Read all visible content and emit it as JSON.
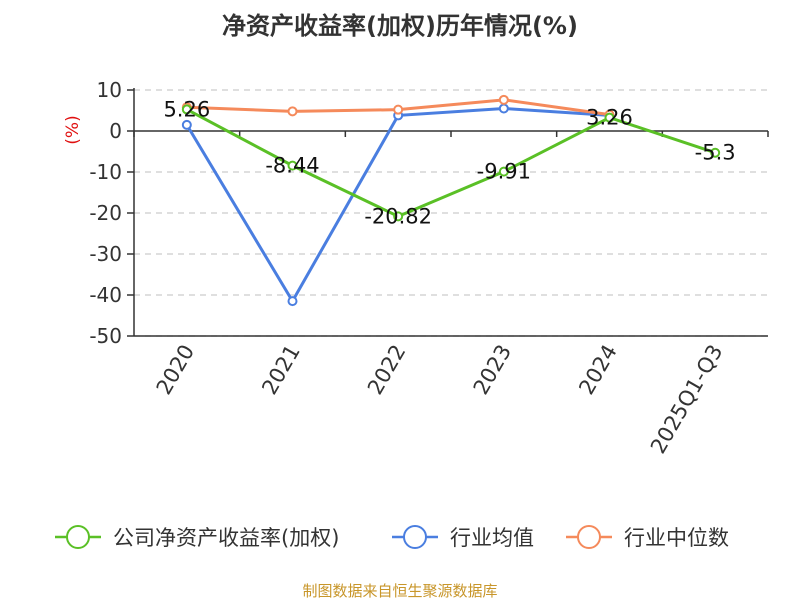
{
  "chart_data": {
    "type": "line",
    "title": "净资产收益率(加权)历年情况(%)",
    "ylabel": "(%)",
    "xlabel": "",
    "categories": [
      "2020",
      "2021",
      "2022",
      "2023",
      "2024",
      "2025Q1-Q3"
    ],
    "ylim": [
      -50,
      10
    ],
    "yticks": [
      10,
      0,
      -10,
      -20,
      -30,
      -40,
      -50
    ],
    "grid": true,
    "legend_position": "bottom",
    "series": [
      {
        "name": "公司净资产收益率(加权)",
        "color": "#5ac026",
        "values": [
          5.26,
          -8.44,
          -20.82,
          -9.91,
          3.26,
          -5.3
        ],
        "labels": [
          "5.26",
          "-8.44",
          "-20.82",
          "-9.91",
          "3.26",
          "-5.3"
        ]
      },
      {
        "name": "行业均值",
        "color": "#4a7ee0",
        "values": [
          1.5,
          -41.5,
          3.8,
          5.5,
          3.8,
          null
        ]
      },
      {
        "name": "行业中位数",
        "color": "#f58a5b",
        "values": [
          5.8,
          4.8,
          5.2,
          7.6,
          4.0,
          null
        ]
      }
    ],
    "source": "制图数据来自恒生聚源数据库"
  }
}
